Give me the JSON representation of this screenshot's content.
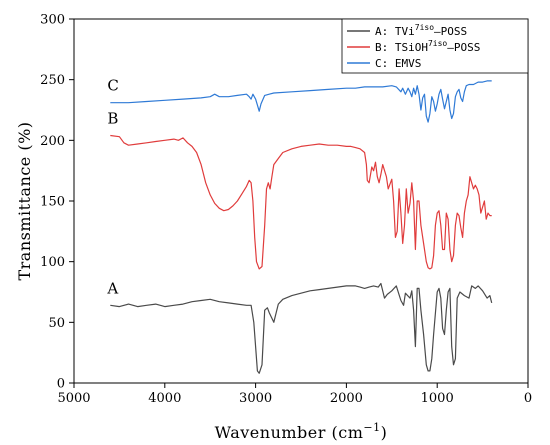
{
  "chart_data": {
    "type": "line",
    "xlabel": "Wavenumber (cm",
    "xlabel_sup": "−1",
    "xlabel_end": ")",
    "ylabel": "Transmittance (%)",
    "xlim": [
      5000,
      0
    ],
    "ylim": [
      0,
      300
    ],
    "xticks": [
      5000,
      4000,
      3000,
      2000,
      1000,
      0
    ],
    "yticks": [
      0,
      50,
      100,
      150,
      200,
      250,
      300
    ],
    "legend_position": "top-right",
    "series": [
      {
        "name": "A: TVi7iso—POSS",
        "legend_prefix": "A: TVi",
        "legend_sup": "7iso",
        "legend_suffix": "—POSS",
        "curve_label": "A",
        "color": "#4a4a4a",
        "points": [
          [
            4600,
            64
          ],
          [
            4500,
            63
          ],
          [
            4400,
            65
          ],
          [
            4300,
            63
          ],
          [
            4200,
            64
          ],
          [
            4100,
            65
          ],
          [
            4000,
            63
          ],
          [
            3900,
            64
          ],
          [
            3800,
            65
          ],
          [
            3700,
            67
          ],
          [
            3600,
            68
          ],
          [
            3500,
            69
          ],
          [
            3400,
            67
          ],
          [
            3300,
            66
          ],
          [
            3200,
            65
          ],
          [
            3100,
            64
          ],
          [
            3050,
            64
          ],
          [
            3020,
            50
          ],
          [
            3000,
            30
          ],
          [
            2980,
            10
          ],
          [
            2960,
            8
          ],
          [
            2930,
            15
          ],
          [
            2900,
            60
          ],
          [
            2870,
            62
          ],
          [
            2850,
            58
          ],
          [
            2800,
            50
          ],
          [
            2750,
            65
          ],
          [
            2700,
            69
          ],
          [
            2600,
            72
          ],
          [
            2500,
            74
          ],
          [
            2400,
            76
          ],
          [
            2300,
            77
          ],
          [
            2200,
            78
          ],
          [
            2100,
            79
          ],
          [
            2000,
            80
          ],
          [
            1950,
            80
          ],
          [
            1900,
            80
          ],
          [
            1850,
            79
          ],
          [
            1800,
            78
          ],
          [
            1750,
            79
          ],
          [
            1700,
            80
          ],
          [
            1650,
            79
          ],
          [
            1620,
            82
          ],
          [
            1580,
            70
          ],
          [
            1550,
            73
          ],
          [
            1500,
            76
          ],
          [
            1450,
            80
          ],
          [
            1400,
            68
          ],
          [
            1370,
            64
          ],
          [
            1350,
            74
          ],
          [
            1300,
            70
          ],
          [
            1280,
            76
          ],
          [
            1260,
            60
          ],
          [
            1240,
            30
          ],
          [
            1220,
            78
          ],
          [
            1200,
            78
          ],
          [
            1180,
            60
          ],
          [
            1150,
            40
          ],
          [
            1120,
            15
          ],
          [
            1100,
            10
          ],
          [
            1080,
            10
          ],
          [
            1060,
            20
          ],
          [
            1040,
            40
          ],
          [
            1000,
            75
          ],
          [
            980,
            78
          ],
          [
            960,
            70
          ],
          [
            940,
            45
          ],
          [
            920,
            40
          ],
          [
            900,
            60
          ],
          [
            880,
            75
          ],
          [
            860,
            78
          ],
          [
            840,
            30
          ],
          [
            820,
            15
          ],
          [
            800,
            20
          ],
          [
            780,
            70
          ],
          [
            750,
            75
          ],
          [
            700,
            72
          ],
          [
            650,
            70
          ],
          [
            620,
            80
          ],
          [
            580,
            78
          ],
          [
            550,
            80
          ],
          [
            500,
            76
          ],
          [
            450,
            70
          ],
          [
            420,
            72
          ],
          [
            400,
            66
          ]
        ]
      },
      {
        "name": "B: TSiOH7iso—POSS",
        "legend_prefix": "B: TSiOH",
        "legend_sup": "7iso",
        "legend_suffix": "—POSS",
        "curve_label": "B",
        "color": "#e03c3c",
        "points": [
          [
            4600,
            204
          ],
          [
            4500,
            203
          ],
          [
            4450,
            198
          ],
          [
            4400,
            196
          ],
          [
            4300,
            197
          ],
          [
            4200,
            198
          ],
          [
            4100,
            199
          ],
          [
            4000,
            200
          ],
          [
            3900,
            201
          ],
          [
            3850,
            200
          ],
          [
            3800,
            202
          ],
          [
            3750,
            198
          ],
          [
            3700,
            195
          ],
          [
            3650,
            190
          ],
          [
            3600,
            180
          ],
          [
            3550,
            165
          ],
          [
            3500,
            155
          ],
          [
            3450,
            148
          ],
          [
            3400,
            144
          ],
          [
            3350,
            142
          ],
          [
            3300,
            143
          ],
          [
            3250,
            146
          ],
          [
            3200,
            150
          ],
          [
            3150,
            156
          ],
          [
            3100,
            162
          ],
          [
            3070,
            167
          ],
          [
            3050,
            165
          ],
          [
            3030,
            150
          ],
          [
            3010,
            120
          ],
          [
            2990,
            100
          ],
          [
            2960,
            94
          ],
          [
            2930,
            96
          ],
          [
            2900,
            130
          ],
          [
            2880,
            160
          ],
          [
            2860,
            165
          ],
          [
            2840,
            160
          ],
          [
            2820,
            170
          ],
          [
            2800,
            180
          ],
          [
            2750,
            185
          ],
          [
            2700,
            190
          ],
          [
            2600,
            193
          ],
          [
            2500,
            195
          ],
          [
            2400,
            196
          ],
          [
            2300,
            197
          ],
          [
            2200,
            196
          ],
          [
            2100,
            196
          ],
          [
            2000,
            195
          ],
          [
            1950,
            195
          ],
          [
            1900,
            194
          ],
          [
            1850,
            193
          ],
          [
            1800,
            190
          ],
          [
            1780,
            180
          ],
          [
            1770,
            167
          ],
          [
            1750,
            165
          ],
          [
            1720,
            178
          ],
          [
            1700,
            175
          ],
          [
            1680,
            182
          ],
          [
            1660,
            170
          ],
          [
            1640,
            165
          ],
          [
            1620,
            172
          ],
          [
            1600,
            180
          ],
          [
            1560,
            170
          ],
          [
            1540,
            160
          ],
          [
            1500,
            168
          ],
          [
            1480,
            150
          ],
          [
            1460,
            120
          ],
          [
            1440,
            125
          ],
          [
            1420,
            160
          ],
          [
            1400,
            140
          ],
          [
            1380,
            115
          ],
          [
            1360,
            130
          ],
          [
            1340,
            160
          ],
          [
            1320,
            140
          ],
          [
            1300,
            148
          ],
          [
            1280,
            165
          ],
          [
            1260,
            150
          ],
          [
            1240,
            110
          ],
          [
            1220,
            150
          ],
          [
            1200,
            150
          ],
          [
            1180,
            130
          ],
          [
            1160,
            120
          ],
          [
            1140,
            110
          ],
          [
            1120,
            100
          ],
          [
            1100,
            95
          ],
          [
            1080,
            94
          ],
          [
            1060,
            95
          ],
          [
            1040,
            105
          ],
          [
            1020,
            130
          ],
          [
            1000,
            140
          ],
          [
            980,
            142
          ],
          [
            960,
            130
          ],
          [
            940,
            110
          ],
          [
            920,
            110
          ],
          [
            900,
            140
          ],
          [
            880,
            135
          ],
          [
            860,
            110
          ],
          [
            840,
            100
          ],
          [
            820,
            105
          ],
          [
            800,
            130
          ],
          [
            780,
            140
          ],
          [
            760,
            138
          ],
          [
            740,
            128
          ],
          [
            720,
            120
          ],
          [
            700,
            140
          ],
          [
            680,
            150
          ],
          [
            660,
            155
          ],
          [
            640,
            170
          ],
          [
            620,
            165
          ],
          [
            600,
            160
          ],
          [
            580,
            163
          ],
          [
            560,
            160
          ],
          [
            540,
            155
          ],
          [
            520,
            140
          ],
          [
            500,
            145
          ],
          [
            480,
            150
          ],
          [
            460,
            135
          ],
          [
            440,
            140
          ],
          [
            420,
            138
          ],
          [
            400,
            138
          ]
        ]
      },
      {
        "name": "C: EMVS",
        "legend_prefix": "C: EMVS",
        "legend_sup": "",
        "legend_suffix": "",
        "curve_label": "C",
        "color": "#2f7ad6",
        "points": [
          [
            4600,
            231
          ],
          [
            4400,
            231
          ],
          [
            4200,
            232
          ],
          [
            4000,
            233
          ],
          [
            3800,
            234
          ],
          [
            3600,
            235
          ],
          [
            3500,
            236
          ],
          [
            3450,
            238
          ],
          [
            3400,
            236
          ],
          [
            3300,
            236
          ],
          [
            3200,
            237
          ],
          [
            3100,
            238
          ],
          [
            3070,
            236
          ],
          [
            3050,
            234
          ],
          [
            3030,
            238
          ],
          [
            3000,
            234
          ],
          [
            2980,
            229
          ],
          [
            2960,
            224
          ],
          [
            2940,
            230
          ],
          [
            2900,
            237
          ],
          [
            2850,
            238
          ],
          [
            2800,
            239
          ],
          [
            2600,
            240
          ],
          [
            2400,
            241
          ],
          [
            2200,
            242
          ],
          [
            2000,
            243
          ],
          [
            1900,
            243
          ],
          [
            1800,
            244
          ],
          [
            1700,
            244
          ],
          [
            1600,
            244
          ],
          [
            1500,
            245
          ],
          [
            1450,
            244
          ],
          [
            1400,
            240
          ],
          [
            1380,
            243
          ],
          [
            1350,
            238
          ],
          [
            1320,
            243
          ],
          [
            1300,
            240
          ],
          [
            1280,
            236
          ],
          [
            1260,
            243
          ],
          [
            1240,
            238
          ],
          [
            1220,
            245
          ],
          [
            1200,
            238
          ],
          [
            1180,
            225
          ],
          [
            1160,
            235
          ],
          [
            1140,
            238
          ],
          [
            1120,
            220
          ],
          [
            1100,
            215
          ],
          [
            1080,
            222
          ],
          [
            1060,
            236
          ],
          [
            1040,
            232
          ],
          [
            1020,
            224
          ],
          [
            1000,
            230
          ],
          [
            980,
            238
          ],
          [
            960,
            242
          ],
          [
            940,
            234
          ],
          [
            920,
            226
          ],
          [
            900,
            232
          ],
          [
            880,
            238
          ],
          [
            860,
            225
          ],
          [
            840,
            218
          ],
          [
            820,
            222
          ],
          [
            800,
            236
          ],
          [
            780,
            240
          ],
          [
            760,
            242
          ],
          [
            740,
            235
          ],
          [
            720,
            232
          ],
          [
            700,
            240
          ],
          [
            680,
            245
          ],
          [
            650,
            246
          ],
          [
            600,
            246
          ],
          [
            550,
            248
          ],
          [
            500,
            248
          ],
          [
            450,
            249
          ],
          [
            400,
            249
          ]
        ]
      }
    ]
  }
}
